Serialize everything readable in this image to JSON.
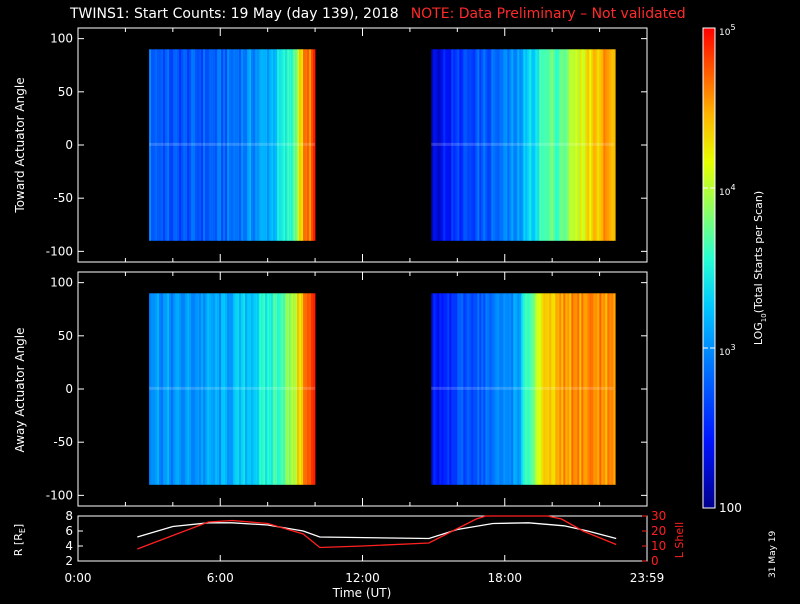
{
  "title": {
    "main": "TWINS1: Start Counts: 19 May (day 139), 2018",
    "note": "NOTE: Data Preliminary – Not validated"
  },
  "date_stamp": "31 May 19",
  "colors": {
    "background": "#000000",
    "note_red": "#ff2a2a",
    "l_shell_line": "#ff2020",
    "r_line": "#ffffff"
  },
  "chart_data": [
    {
      "type": "heatmap",
      "name": "Toward Actuator Angle spectrogram",
      "ylabel": "Toward Actuator Angle",
      "ylim": [
        -110,
        110
      ],
      "y_ticks": [
        "100",
        "50",
        "0",
        "-50",
        "-100"
      ],
      "x_range_hours": [
        0,
        24
      ],
      "data_extent_y": [
        -90,
        90
      ],
      "segments": [
        {
          "start_hr": 3.0,
          "end_hr": 10.0,
          "log_value_by_hour": [
            [
              3.0,
              2.85
            ],
            [
              4.0,
              2.7
            ],
            [
              5.0,
              2.75
            ],
            [
              6.0,
              2.8
            ],
            [
              7.0,
              2.95
            ],
            [
              8.0,
              3.15
            ],
            [
              9.0,
              3.6
            ],
            [
              9.5,
              4.55
            ],
            [
              10.0,
              4.8
            ]
          ]
        },
        {
          "start_hr": 14.9,
          "end_hr": 22.6,
          "log_value_by_hour": [
            [
              14.9,
              2.3
            ],
            [
              15.5,
              2.45
            ],
            [
              16.5,
              2.7
            ],
            [
              17.5,
              2.8
            ],
            [
              18.5,
              3.0
            ],
            [
              19.5,
              3.6
            ],
            [
              20.5,
              3.8
            ],
            [
              21.5,
              4.3
            ],
            [
              22.6,
              4.6
            ]
          ]
        }
      ]
    },
    {
      "type": "heatmap",
      "name": "Away Actuator Angle spectrogram",
      "ylabel": "Away Actuator Angle",
      "ylim": [
        -110,
        110
      ],
      "y_ticks": [
        "100",
        "50",
        "0",
        "-50",
        "-100"
      ],
      "x_range_hours": [
        0,
        24
      ],
      "data_extent_y": [
        -90,
        90
      ],
      "segments": [
        {
          "start_hr": 3.0,
          "end_hr": 10.0,
          "log_value_by_hour": [
            [
              3.0,
              3.1
            ],
            [
              4.0,
              3.0
            ],
            [
              5.0,
              3.05
            ],
            [
              6.0,
              3.1
            ],
            [
              7.0,
              3.25
            ],
            [
              8.0,
              3.5
            ],
            [
              9.0,
              3.9
            ],
            [
              9.5,
              4.6
            ],
            [
              10.0,
              4.85
            ]
          ]
        },
        {
          "start_hr": 14.9,
          "end_hr": 22.6,
          "log_value_by_hour": [
            [
              14.9,
              2.35
            ],
            [
              15.5,
              2.5
            ],
            [
              16.5,
              2.75
            ],
            [
              17.5,
              2.85
            ],
            [
              18.5,
              3.1
            ],
            [
              19.5,
              4.2
            ],
            [
              20.5,
              4.5
            ],
            [
              21.5,
              4.6
            ],
            [
              22.6,
              4.55
            ]
          ]
        }
      ]
    },
    {
      "type": "colorbar",
      "label": "LOG10(Total Starts per Scan)",
      "label_main": "LOG",
      "label_sub": "10",
      "label_rest": "(Total Starts per Scan)",
      "range_log": [
        2,
        5
      ],
      "ticks": [
        {
          "log": 5,
          "base": "10",
          "exp": "5"
        },
        {
          "log": 4,
          "base": "10",
          "exp": "4"
        },
        {
          "log": 3,
          "base": "10",
          "exp": "3"
        },
        {
          "log": 2,
          "text": "100"
        }
      ]
    },
    {
      "type": "line",
      "name": "Orbit panel",
      "xlabel": "Time (UT)",
      "x_ticks": [
        "0:00",
        "6:00",
        "12:00",
        "18:00",
        "23:59"
      ],
      "x_tick_hours": [
        0,
        6,
        12,
        18,
        24
      ],
      "left_axis": {
        "label": "R [RE]",
        "label_main": "R [R",
        "label_sub": "E",
        "label_end": "]",
        "ylim": [
          2,
          8
        ],
        "ticks": [
          "8",
          "6",
          "4",
          "2"
        ]
      },
      "right_axis": {
        "label": "L Shell",
        "ylim": [
          0,
          30
        ],
        "ticks": [
          "30",
          "20",
          "10",
          "0"
        ]
      },
      "series": [
        {
          "name": "R",
          "axis": "left",
          "x": [
            2.5,
            4,
            5.5,
            6.5,
            8,
            9.5,
            10.2,
            14.8,
            16,
            17.5,
            19,
            20.5,
            21.5,
            22.7
          ],
          "y": [
            5.2,
            6.6,
            7.1,
            7.1,
            6.8,
            6.0,
            5.2,
            5.0,
            6.2,
            7.0,
            7.1,
            6.7,
            6.0,
            5.0
          ]
        },
        {
          "name": "L Shell",
          "axis": "right",
          "x": [
            2.5,
            4,
            5.5,
            6.5,
            8,
            9.5,
            10.2,
            12,
            14.8,
            15.8,
            16.8,
            17.2,
            19.8,
            20.4,
            21.3,
            22.7
          ],
          "y": [
            8,
            17,
            26,
            27,
            25,
            18,
            9,
            10,
            12,
            20,
            28,
            30,
            30,
            28,
            20,
            11
          ]
        }
      ]
    }
  ]
}
